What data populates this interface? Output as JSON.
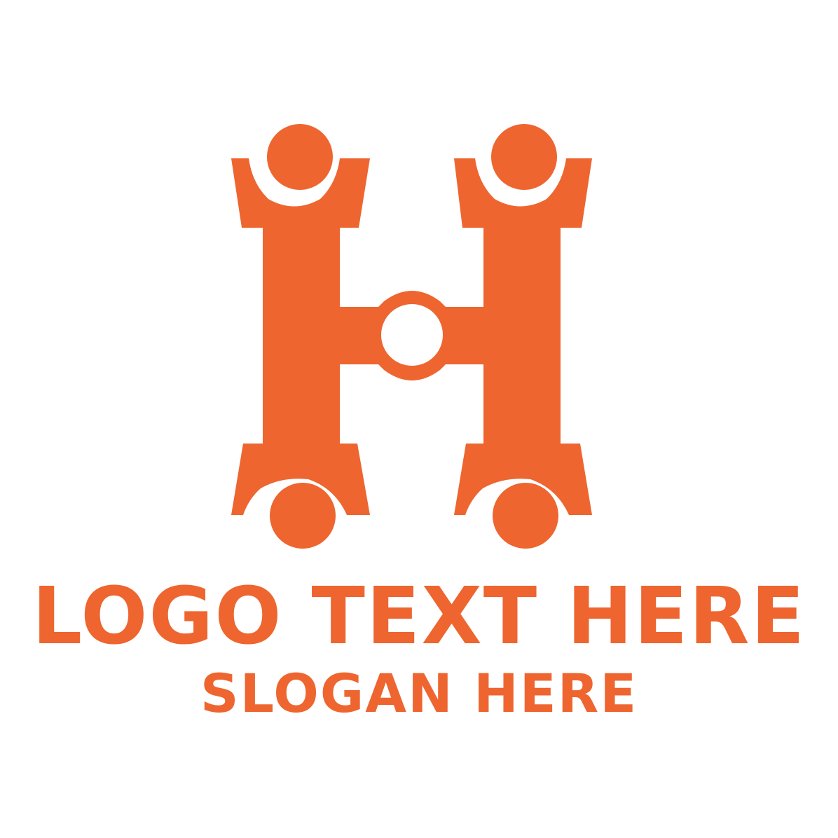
{
  "brand": {
    "color": "#EE6530",
    "background": "#FFFFFF",
    "mark_icon": "letter-h-people-icon"
  },
  "logo": {
    "title": "LOGO TEXT HERE",
    "slogan": "SLOGAN HERE"
  }
}
